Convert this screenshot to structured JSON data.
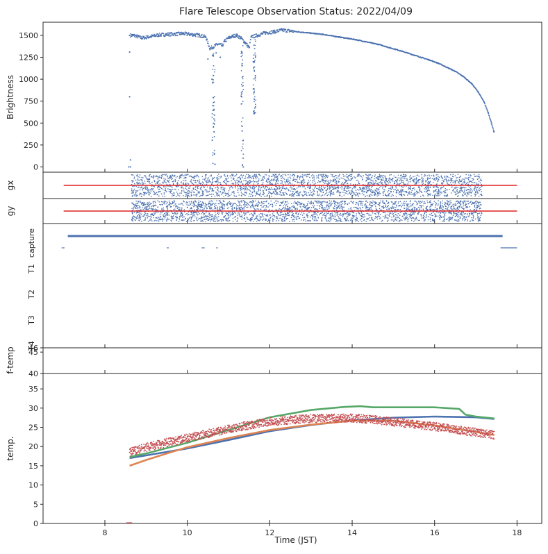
{
  "title": "Flare Telescope Observation Status: 2022/04/09",
  "xlabel": "Time (JST)",
  "colors": {
    "blue": "#4c72b0",
    "orange": "#dd8452",
    "green": "#55a868",
    "red": "#c44e52",
    "line_red": "#e02020"
  },
  "chart_data": [
    {
      "type": "scatter",
      "ylabel": "Brightness",
      "xlim": [
        6.5,
        18.6
      ],
      "ylim": [
        -60,
        1650
      ],
      "xticks": [
        8,
        10,
        12,
        14,
        16,
        18
      ],
      "yticks": [
        "0",
        "250",
        "500",
        "750",
        "1000",
        "1250",
        "1500"
      ],
      "series": [
        {
          "color": "blue",
          "points": [
            [
              8.58,
              0
            ],
            [
              8.62,
              0
            ],
            [
              8.6,
              800
            ],
            [
              8.6,
              1310
            ],
            [
              8.6,
              1500
            ],
            [
              8.62,
              80
            ],
            [
              8.7,
              1500
            ],
            [
              8.9,
              1470
            ],
            [
              9.1,
              1485
            ],
            [
              9.3,
              1505
            ],
            [
              9.5,
              1510
            ],
            [
              9.7,
              1515
            ],
            [
              9.9,
              1520
            ],
            [
              10.1,
              1510
            ],
            [
              10.3,
              1500
            ],
            [
              10.45,
              1480
            ],
            [
              10.5,
              1230
            ],
            [
              10.55,
              1350
            ],
            [
              10.6,
              1000
            ],
            [
              10.62,
              700
            ],
            [
              10.63,
              790
            ],
            [
              10.65,
              400
            ],
            [
              10.66,
              150
            ],
            [
              10.67,
              30
            ],
            [
              10.7,
              1300
            ],
            [
              10.75,
              1400
            ],
            [
              10.8,
              1250
            ],
            [
              10.85,
              1380
            ],
            [
              10.9,
              1430
            ],
            [
              11.0,
              1470
            ],
            [
              11.1,
              1490
            ],
            [
              11.2,
              1500
            ],
            [
              11.3,
              1470
            ],
            [
              11.32,
              800
            ],
            [
              11.33,
              410
            ],
            [
              11.35,
              300
            ],
            [
              11.36,
              0
            ],
            [
              11.4,
              1420
            ],
            [
              11.5,
              1360
            ],
            [
              11.55,
              1480
            ],
            [
              11.6,
              1200
            ],
            [
              11.62,
              850
            ],
            [
              11.63,
              610
            ],
            [
              11.65,
              1040
            ],
            [
              11.7,
              1500
            ],
            [
              11.9,
              1530
            ],
            [
              12.1,
              1540
            ],
            [
              12.3,
              1560
            ],
            [
              12.5,
              1550
            ],
            [
              12.7,
              1540
            ],
            [
              12.9,
              1530
            ],
            [
              13.1,
              1520
            ],
            [
              13.3,
              1510
            ],
            [
              13.5,
              1495
            ],
            [
              13.7,
              1480
            ],
            [
              13.9,
              1465
            ],
            [
              14.1,
              1450
            ],
            [
              14.3,
              1430
            ],
            [
              14.5,
              1410
            ],
            [
              14.7,
              1390
            ],
            [
              14.9,
              1360
            ],
            [
              15.1,
              1335
            ],
            [
              15.3,
              1305
            ],
            [
              15.5,
              1275
            ],
            [
              15.7,
              1245
            ],
            [
              15.9,
              1215
            ],
            [
              16.1,
              1180
            ],
            [
              16.3,
              1135
            ],
            [
              16.5,
              1090
            ],
            [
              16.7,
              1030
            ],
            [
              16.9,
              950
            ],
            [
              17.05,
              860
            ],
            [
              17.2,
              740
            ],
            [
              17.3,
              620
            ],
            [
              17.38,
              500
            ],
            [
              17.44,
              400
            ]
          ]
        }
      ]
    },
    {
      "type": "scatter",
      "ylabel": "gx",
      "xlim": [
        6.5,
        18.6
      ],
      "series": [
        {
          "color": "blue",
          "x_range": [
            8.65,
            17.15
          ],
          "noise": true
        }
      ],
      "reference_line": {
        "color": "line_red",
        "x_range": [
          7.0,
          18.0
        ]
      }
    },
    {
      "type": "scatter",
      "ylabel": "gy",
      "xlim": [
        6.5,
        18.6
      ],
      "series": [
        {
          "color": "blue",
          "x_range": [
            8.65,
            17.15
          ],
          "noise": true
        }
      ],
      "reference_line": {
        "color": "line_red",
        "x_range": [
          7.0,
          18.0
        ]
      }
    },
    {
      "type": "line",
      "xlim": [
        6.5,
        18.6
      ],
      "yticks": [
        "capture",
        "T1",
        "T2",
        "T3",
        "T4"
      ],
      "series": [
        {
          "label": "capture",
          "color": "blue",
          "x_range": [
            7.1,
            17.65
          ],
          "weight": "thick"
        },
        {
          "label": "T1",
          "color": "blue",
          "segments": [
            [
              6.95,
              7.02
            ],
            [
              9.5,
              9.55
            ],
            [
              10.35,
              10.42
            ],
            [
              10.7,
              10.74
            ],
            [
              17.6,
              18.0
            ]
          ]
        }
      ]
    },
    {
      "type": "line",
      "ylabel": "f-temp",
      "xlim": [
        6.5,
        18.6
      ],
      "ylim": [
        40,
        46
      ],
      "yticks": [
        "40",
        "45",
        "46"
      ]
    },
    {
      "type": "line",
      "ylabel": "temp.",
      "xlim": [
        6.5,
        18.6
      ],
      "ylim": [
        0,
        39
      ],
      "xticks": [
        8,
        10,
        12,
        14,
        16,
        18
      ],
      "yticks": [
        "0",
        "5",
        "10",
        "15",
        "20",
        "25",
        "30",
        "35"
      ],
      "series": [
        {
          "color": "blue",
          "points": [
            [
              8.6,
              17
            ],
            [
              9,
              17.7
            ],
            [
              10,
              19.5
            ],
            [
              11,
              21.7
            ],
            [
              12,
              24.0
            ],
            [
              13,
              25.6
            ],
            [
              14,
              26.8
            ],
            [
              15,
              27.5
            ],
            [
              16,
              27.8
            ],
            [
              17,
              27.6
            ],
            [
              17.45,
              27.2
            ]
          ]
        },
        {
          "color": "orange",
          "points": [
            [
              8.6,
              15
            ],
            [
              9,
              16.5
            ],
            [
              9.5,
              18.2
            ],
            [
              10,
              19.8
            ],
            [
              11,
              22.2
            ],
            [
              12,
              24.3
            ],
            [
              13,
              25.7
            ],
            [
              14,
              26.7
            ],
            [
              15,
              26.7
            ],
            [
              16,
              25.5
            ],
            [
              17,
              23.8
            ],
            [
              17.45,
              23
            ]
          ]
        },
        {
          "color": "green",
          "points": [
            [
              8.6,
              17.3
            ],
            [
              9,
              18.2
            ],
            [
              10,
              21.0
            ],
            [
              11,
              24.3
            ],
            [
              12,
              27.6
            ],
            [
              13,
              29.5
            ],
            [
              13.8,
              30.3
            ],
            [
              14.2,
              30.5
            ],
            [
              14.5,
              30.2
            ],
            [
              15,
              30.2
            ],
            [
              16,
              30.2
            ],
            [
              16.6,
              29.8
            ],
            [
              16.75,
              28.3
            ],
            [
              17,
              27.8
            ],
            [
              17.45,
              27.3
            ]
          ]
        },
        {
          "color": "red",
          "scatter": true,
          "points": [
            [
              8.6,
              18.5
            ],
            [
              9,
              19.8
            ],
            [
              10,
              22.2
            ],
            [
              11,
              24.6
            ],
            [
              12,
              26.5
            ],
            [
              13,
              27.3
            ],
            [
              14,
              27.4
            ],
            [
              14.5,
              27
            ],
            [
              15,
              26.4
            ],
            [
              16,
              25.2
            ],
            [
              17,
              23.7
            ],
            [
              17.45,
              23
            ]
          ]
        },
        {
          "color": "red",
          "points": [
            [
              8.52,
              0.05
            ],
            [
              8.66,
              0.05
            ]
          ]
        }
      ]
    }
  ]
}
